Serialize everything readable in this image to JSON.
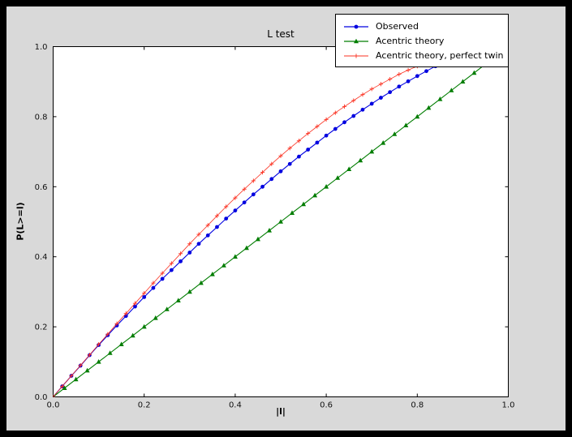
{
  "window": {
    "frame_color": "#000000",
    "figure_bg": "#d9d9d9",
    "plot_bg": "#ffffff"
  },
  "chart_data": {
    "type": "line",
    "title": "L test",
    "xlabel": "|l|",
    "ylabel": "P(L>=l)",
    "xlim": [
      0,
      1
    ],
    "ylim": [
      0,
      1
    ],
    "x_ticks": [
      "0.0",
      "0.2",
      "0.4",
      "0.6",
      "0.8",
      "1.0"
    ],
    "y_ticks": [
      "0.0",
      "0.2",
      "0.4",
      "0.6",
      "0.8",
      "1.0"
    ],
    "grid": false,
    "legend_position": "upper right",
    "series": [
      {
        "name": "Observed",
        "color": "#0000e0",
        "marker": "circle",
        "x": [
          0,
          0.02,
          0.04,
          0.06,
          0.08,
          0.1,
          0.12,
          0.14,
          0.16,
          0.18,
          0.2,
          0.22,
          0.24,
          0.26,
          0.28,
          0.3,
          0.32,
          0.34,
          0.36,
          0.38,
          0.4,
          0.42,
          0.44,
          0.46,
          0.48,
          0.5,
          0.52,
          0.54,
          0.56,
          0.58,
          0.6,
          0.62,
          0.64,
          0.66,
          0.68,
          0.7,
          0.72,
          0.74,
          0.76,
          0.78,
          0.8,
          0.82,
          0.84,
          0.86
        ],
        "y": [
          0,
          0.03,
          0.06,
          0.089,
          0.119,
          0.148,
          0.176,
          0.204,
          0.231,
          0.258,
          0.285,
          0.311,
          0.337,
          0.362,
          0.387,
          0.412,
          0.437,
          0.461,
          0.485,
          0.509,
          0.532,
          0.555,
          0.578,
          0.6,
          0.622,
          0.644,
          0.665,
          0.686,
          0.706,
          0.726,
          0.746,
          0.765,
          0.784,
          0.802,
          0.82,
          0.837,
          0.854,
          0.87,
          0.886,
          0.901,
          0.916,
          0.93,
          0.944,
          0.957
        ]
      },
      {
        "name": "Acentric theory",
        "color": "#007d00",
        "marker": "triangle",
        "x": [
          0,
          0.025,
          0.05,
          0.075,
          0.1,
          0.125,
          0.15,
          0.175,
          0.2,
          0.225,
          0.25,
          0.275,
          0.3,
          0.325,
          0.35,
          0.375,
          0.4,
          0.425,
          0.45,
          0.475,
          0.5,
          0.525,
          0.55,
          0.575,
          0.6,
          0.625,
          0.65,
          0.675,
          0.7,
          0.725,
          0.75,
          0.775,
          0.8,
          0.825,
          0.85,
          0.875,
          0.9,
          0.925,
          0.95,
          0.975
        ],
        "y": [
          0,
          0.025,
          0.05,
          0.075,
          0.1,
          0.125,
          0.15,
          0.175,
          0.2,
          0.225,
          0.25,
          0.275,
          0.3,
          0.325,
          0.35,
          0.375,
          0.4,
          0.425,
          0.45,
          0.475,
          0.5,
          0.525,
          0.55,
          0.575,
          0.6,
          0.625,
          0.65,
          0.675,
          0.7,
          0.725,
          0.75,
          0.775,
          0.8,
          0.825,
          0.85,
          0.875,
          0.9,
          0.925,
          0.95,
          0.975
        ]
      },
      {
        "name": "Acentric theory, perfect twin",
        "color": "#fb3222",
        "marker": "plus",
        "x": [
          0,
          0.02,
          0.04,
          0.06,
          0.08,
          0.1,
          0.12,
          0.14,
          0.16,
          0.18,
          0.2,
          0.22,
          0.24,
          0.26,
          0.28,
          0.3,
          0.32,
          0.34,
          0.36,
          0.38,
          0.4,
          0.42,
          0.44,
          0.46,
          0.48,
          0.5,
          0.52,
          0.54,
          0.56,
          0.58,
          0.6,
          0.62,
          0.64,
          0.66,
          0.68,
          0.7,
          0.72,
          0.74,
          0.76,
          0.78,
          0.8,
          0.82,
          0.84,
          0.86
        ],
        "y": [
          0,
          0.03,
          0.06,
          0.09,
          0.12,
          0.15,
          0.179,
          0.209,
          0.238,
          0.267,
          0.296,
          0.325,
          0.353,
          0.381,
          0.409,
          0.437,
          0.464,
          0.49,
          0.517,
          0.543,
          0.568,
          0.593,
          0.617,
          0.641,
          0.665,
          0.688,
          0.71,
          0.731,
          0.752,
          0.772,
          0.792,
          0.811,
          0.829,
          0.846,
          0.863,
          0.879,
          0.893,
          0.907,
          0.921,
          0.933,
          0.944,
          0.954,
          0.964,
          0.972
        ]
      }
    ]
  }
}
